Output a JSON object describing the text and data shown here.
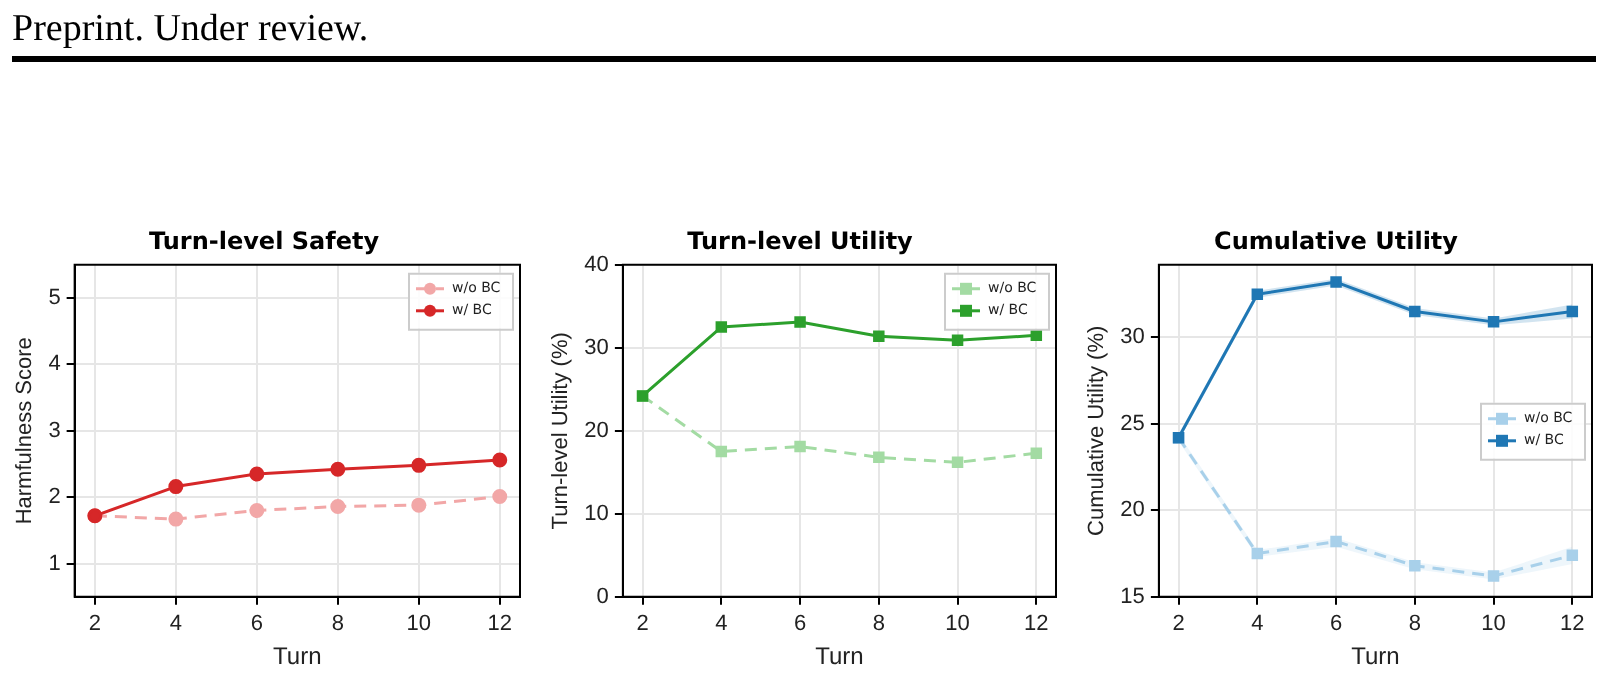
{
  "chart_data": [
    {
      "type": "line",
      "title": "Turn-level Safety",
      "xlabel": "Turn",
      "ylabel": "Harmfulness Score",
      "annotations": [
        "Preprint. Under review."
      ],
      "x": [
        2,
        4,
        6,
        8,
        10,
        12
      ],
      "xlim": [
        1.5,
        12.5
      ],
      "xticks": [
        2,
        4,
        6,
        8,
        10,
        12
      ],
      "ylim": [
        0.5,
        5.5
      ],
      "yticks": [
        1,
        2,
        3,
        4,
        5
      ],
      "grid": true,
      "legend": "top right",
      "marker": "circle",
      "series": [
        {
          "name": "w/o BC",
          "color": "#f2a7a7",
          "line_style": "dashed",
          "values": [
            1.72,
            1.67,
            1.8,
            1.86,
            1.88,
            2.01
          ]
        },
        {
          "name": "w/ BC",
          "color": "#d62728",
          "line_style": "solid",
          "values": [
            1.72,
            2.16,
            2.35,
            2.42,
            2.48,
            2.56
          ]
        }
      ]
    },
    {
      "type": "line",
      "title": "Turn-level Utility",
      "xlabel": "Turn",
      "ylabel": "Turn-level Utility (%)",
      "x": [
        2,
        4,
        6,
        8,
        10,
        12
      ],
      "xlim": [
        1.5,
        12.5
      ],
      "xticks": [
        2,
        4,
        6,
        8,
        10,
        12
      ],
      "ylim": [
        0,
        40
      ],
      "yticks": [
        0,
        10,
        20,
        30,
        40
      ],
      "grid": true,
      "legend": "top right",
      "marker": "square",
      "series": [
        {
          "name": "w/o BC",
          "color": "#a3dba3",
          "line_style": "dashed",
          "values": [
            24.2,
            17.5,
            18.1,
            16.8,
            16.2,
            17.3
          ]
        },
        {
          "name": "w/ BC",
          "color": "#2ca02c",
          "line_style": "solid",
          "values": [
            24.2,
            32.5,
            33.1,
            31.4,
            30.9,
            31.5
          ]
        }
      ]
    },
    {
      "type": "line",
      "title": "Cumulative Utility",
      "xlabel": "Turn",
      "ylabel": "Cumulative Utility (%)",
      "x": [
        2,
        4,
        6,
        8,
        10,
        12
      ],
      "xlim": [
        1.5,
        12.5
      ],
      "xticks": [
        2,
        4,
        6,
        8,
        10,
        12
      ],
      "ylim": [
        15,
        34.2
      ],
      "yticks": [
        15,
        20,
        25,
        30
      ],
      "grid": true,
      "legend": "right",
      "marker": "square",
      "series": [
        {
          "name": "w/o BC",
          "color": "#a8d0ea",
          "line_style": "dashed",
          "values": [
            24.2,
            17.5,
            18.2,
            16.8,
            16.2,
            17.4
          ],
          "lower": [
            24.0,
            17.3,
            17.9,
            16.6,
            16.0,
            16.9
          ],
          "upper": [
            24.4,
            17.7,
            18.4,
            17.0,
            16.4,
            17.9
          ]
        },
        {
          "name": "w/ BC",
          "color": "#1f77b4",
          "line_style": "solid",
          "values": [
            24.2,
            32.5,
            33.2,
            31.5,
            30.9,
            31.5
          ],
          "lower": [
            24.0,
            32.3,
            33.0,
            31.3,
            30.7,
            31.1
          ],
          "upper": [
            24.4,
            32.7,
            33.4,
            31.7,
            31.1,
            31.9
          ]
        }
      ]
    }
  ]
}
